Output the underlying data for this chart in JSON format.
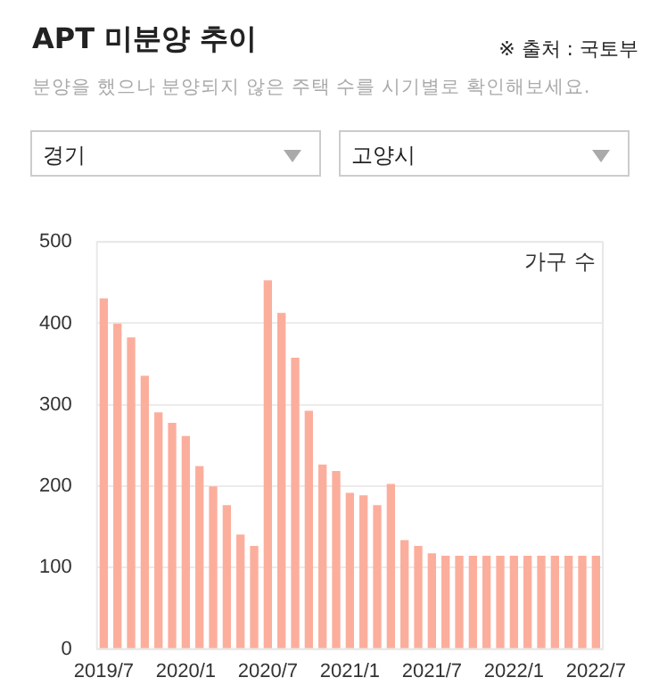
{
  "chart_data": {
    "type": "bar",
    "title": "APT 미분양 추이",
    "subtitle": "분양을 했으나 분양되지 않은 주택 수를 시기별로 확인해보세요.",
    "ylabel": "가구 수",
    "annotations": [
      "※ 출처 : 국토부",
      "경기",
      "고양시"
    ],
    "categories": [
      "2019/7",
      null,
      null,
      null,
      null,
      null,
      "2020/1",
      null,
      null,
      null,
      null,
      null,
      "2020/7",
      null,
      null,
      null,
      null,
      null,
      "2021/1",
      null,
      null,
      null,
      null,
      null,
      "2021/7",
      null,
      null,
      null,
      null,
      null,
      "2022/1",
      null,
      null,
      null,
      null,
      null,
      "2022/7"
    ],
    "values": [
      430,
      399,
      382,
      335,
      290,
      277,
      261,
      224,
      199,
      176,
      140,
      126,
      452,
      412,
      357,
      292,
      226,
      218,
      191,
      188,
      176,
      202,
      133,
      126,
      117,
      114,
      114,
      114,
      114,
      114,
      114,
      114,
      114,
      114,
      114,
      114,
      114
    ],
    "color": "#fcae9c",
    "ylim": [
      0,
      500
    ],
    "yticks": [
      0,
      100,
      200,
      300,
      400,
      500
    ],
    "grid": "y",
    "legend": false
  }
}
